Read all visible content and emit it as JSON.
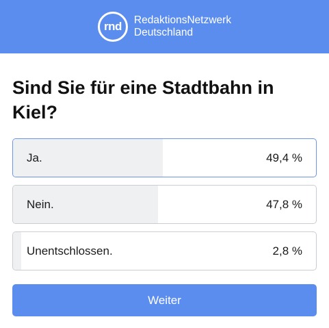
{
  "header": {
    "logo_text": "rnd",
    "brand_line1": "RedaktionsNetzwerk",
    "brand_line2": "Deutschland",
    "background_color": "#5b8def"
  },
  "poll": {
    "question": "Sind Sie für eine Stadtbahn in Kiel?",
    "options": [
      {
        "label": "Ja.",
        "percent_text": "49,4 %",
        "percent": 49.4,
        "selected": true
      },
      {
        "label": "Nein.",
        "percent_text": "47,8 %",
        "percent": 47.8,
        "selected": false
      },
      {
        "label": "Unentschlossen.",
        "percent_text": "2,8 %",
        "percent": 2.8,
        "selected": false
      }
    ]
  },
  "actions": {
    "next_label": "Weiter",
    "accent_color": "#5b8def"
  }
}
